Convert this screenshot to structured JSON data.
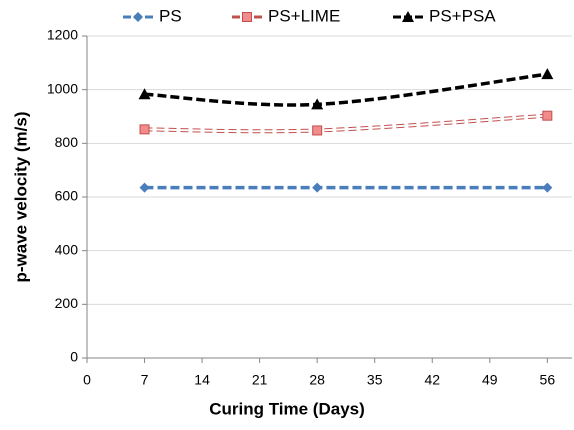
{
  "chart_data": {
    "type": "line",
    "x_label": "Curing Time (Days)",
    "y_label": "p-wave velocity (m/s)",
    "x": [
      7,
      28,
      56
    ],
    "series": [
      {
        "name": "PS",
        "color": "#4a7ebb",
        "marker": "diamond",
        "values": [
          635,
          635,
          635
        ]
      },
      {
        "name": "PS+LIME",
        "color": "#c0504d",
        "marker": "square",
        "values": [
          852,
          848,
          903
        ]
      },
      {
        "name": "PS+PSA",
        "color": "#000000",
        "marker": "triangle",
        "values": [
          983,
          945,
          1058
        ]
      }
    ],
    "xlim": [
      0,
      59
    ],
    "xticks": [
      0,
      7,
      14,
      21,
      28,
      35,
      42,
      49,
      56
    ],
    "ylim": [
      0,
      1200
    ],
    "yticks": [
      0,
      200,
      400,
      600,
      800,
      1000,
      1200
    ],
    "grid": true,
    "smooth": true,
    "legend": "top"
  }
}
